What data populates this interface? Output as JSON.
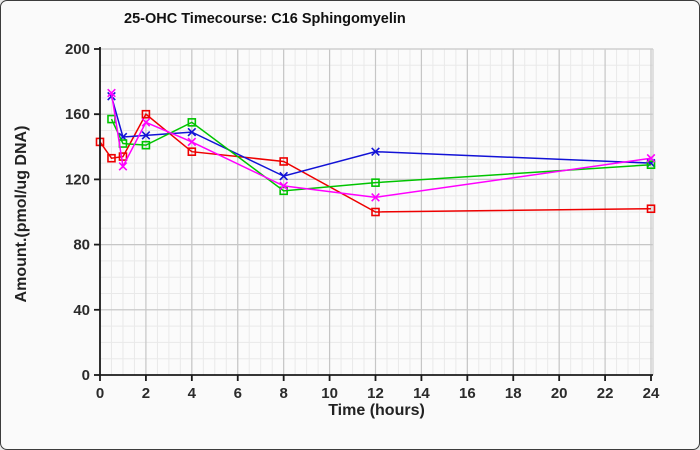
{
  "chart_data": {
    "type": "line",
    "title": "25-OHC Timecourse: C16 Sphingomyelin",
    "xlabel": "Time (hours)",
    "ylabel": "Amount.(pmol/ug DNA)",
    "xlim": [
      0,
      24.15
    ],
    "ylim": [
      0,
      200
    ],
    "x_ticks": [
      0,
      2,
      4,
      6,
      8,
      10,
      12,
      14,
      16,
      18,
      20,
      22,
      24
    ],
    "y_ticks": [
      0,
      40,
      80,
      120,
      160,
      200
    ],
    "grid": {
      "minor_x_step": 0.5,
      "minor_y_step": 10,
      "major_x_step": 2,
      "major_y_step": 40,
      "minor_color": "#e9e9e9",
      "major_color": "#c6c6c6"
    },
    "legend": "none",
    "colors": {
      "background": "#fafafa",
      "plot_background": "#fbfbfb",
      "axis": "#1a1a1a",
      "tick_text": "#2b2b2b",
      "frame": "#cfcfcf"
    },
    "series": [
      {
        "name": "red-squares",
        "color": "#ee0000",
        "marker": "square",
        "x": [
          0,
          0.5,
          1,
          2,
          4,
          8,
          12,
          24
        ],
        "y": [
          143,
          133,
          134,
          160,
          137,
          131,
          100,
          102
        ]
      },
      {
        "name": "blue-x",
        "color": "#1212d6",
        "marker": "x",
        "x": [
          0.5,
          1,
          2,
          4,
          8,
          12,
          24
        ],
        "y": [
          171,
          146,
          147,
          149,
          122,
          137,
          130
        ]
      },
      {
        "name": "green-squares",
        "color": "#00c400",
        "marker": "square",
        "x": [
          0.5,
          1,
          2,
          4,
          8,
          12,
          24
        ],
        "y": [
          157,
          142,
          141,
          155,
          113,
          118,
          129
        ]
      },
      {
        "name": "magenta-x",
        "color": "#ff00ff",
        "marker": "x",
        "x": [
          0.5,
          1,
          2,
          4,
          8,
          12,
          24
        ],
        "y": [
          173,
          128,
          155,
          143,
          116,
          109,
          133
        ]
      }
    ]
  }
}
